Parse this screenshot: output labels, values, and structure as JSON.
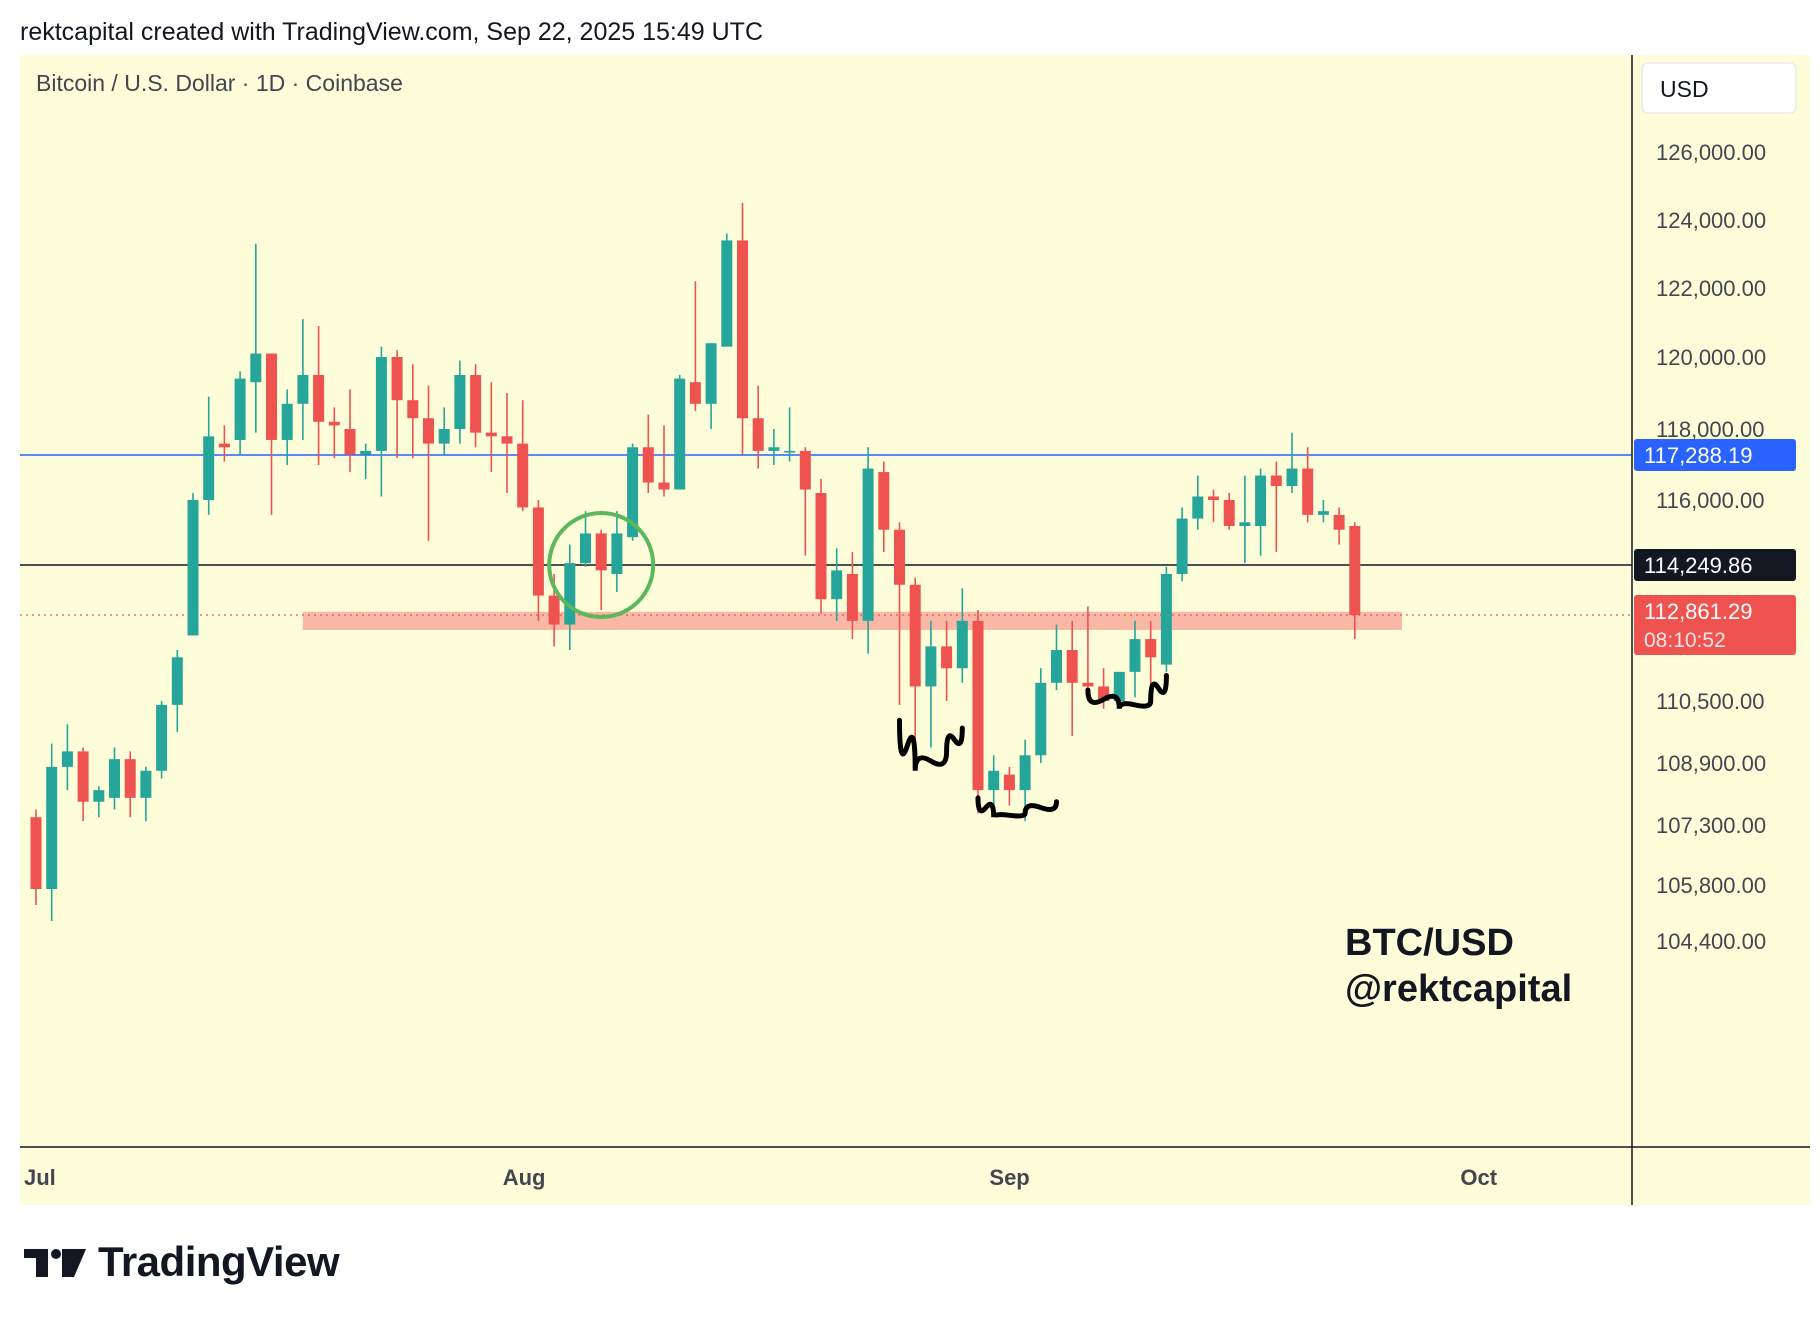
{
  "header": {
    "attribution": "rektcapital created with TradingView.com, Sep 22, 2025 15:49 UTC"
  },
  "chart": {
    "symbol_line": "Bitcoin / U.S. Dollar · 1D · Coinbase",
    "currency_button": "USD",
    "watermark_line1": "BTC/USD",
    "watermark_line2": "@rektcapital",
    "colors": {
      "background": "#fefdd9",
      "up": "#26a69a",
      "down": "#ef5350",
      "blue_line": "#2962ff",
      "black_line": "#131722",
      "zone": "#f7a597",
      "circle": "#5cb85c",
      "axis_text": "#434651"
    }
  },
  "chart_data": {
    "type": "candlestick",
    "y_ticks": [
      {
        "label": "126,000.00",
        "value": 126000
      },
      {
        "label": "124,000.00",
        "value": 124000
      },
      {
        "label": "122,000.00",
        "value": 122000
      },
      {
        "label": "120,000.00",
        "value": 120000
      },
      {
        "label": "118,000.00",
        "value": 118000
      },
      {
        "label": "116,000.00",
        "value": 116000
      },
      {
        "label": "110,500.00",
        "value": 110500
      },
      {
        "label": "108,900.00",
        "value": 108900
      },
      {
        "label": "107,300.00",
        "value": 107300
      },
      {
        "label": "105,800.00",
        "value": 105800
      },
      {
        "label": "104,400.00",
        "value": 104400
      }
    ],
    "x_ticks": [
      "Jul",
      "Aug",
      "Sep",
      "Oct"
    ],
    "price_labels": [
      {
        "value": 117288.19,
        "label": "117,288.19",
        "style": "blue"
      },
      {
        "value": 114249.86,
        "label": "114,249.86",
        "style": "black"
      },
      {
        "value": 112861.29,
        "label": "112,861.29",
        "countdown": "08:10:52",
        "style": "red"
      }
    ],
    "horizontal_lines": [
      {
        "price": 117288.19,
        "style": "blue-solid"
      },
      {
        "price": 114249.86,
        "style": "black-solid"
      },
      {
        "price": 112861.29,
        "style": "red-dotted"
      }
    ],
    "zone": {
      "from_day": 17,
      "to_day": 87,
      "low": 112450,
      "high": 112950
    },
    "candles": [
      {
        "d": 0,
        "o": 107500,
        "h": 107700,
        "l": 105300,
        "c": 105700
      },
      {
        "d": 1,
        "o": 105700,
        "h": 109400,
        "l": 104900,
        "c": 108800
      },
      {
        "d": 2,
        "o": 108800,
        "h": 109900,
        "l": 108200,
        "c": 109200
      },
      {
        "d": 3,
        "o": 109200,
        "h": 109300,
        "l": 107400,
        "c": 107900
      },
      {
        "d": 4,
        "o": 107900,
        "h": 108300,
        "l": 107500,
        "c": 108200
      },
      {
        "d": 5,
        "o": 108000,
        "h": 109300,
        "l": 107700,
        "c": 109000
      },
      {
        "d": 6,
        "o": 109000,
        "h": 109200,
        "l": 107500,
        "c": 108000
      },
      {
        "d": 7,
        "o": 108000,
        "h": 108800,
        "l": 107400,
        "c": 108700
      },
      {
        "d": 8,
        "o": 108700,
        "h": 110500,
        "l": 108500,
        "c": 110400
      },
      {
        "d": 9,
        "o": 110400,
        "h": 111900,
        "l": 109700,
        "c": 111700
      },
      {
        "d": 10,
        "o": 112300,
        "h": 116200,
        "l": 112300,
        "c": 116000
      },
      {
        "d": 11,
        "o": 116000,
        "h": 118900,
        "l": 115600,
        "c": 117800
      },
      {
        "d": 12,
        "o": 117600,
        "h": 118100,
        "l": 117100,
        "c": 117500
      },
      {
        "d": 13,
        "o": 117700,
        "h": 119600,
        "l": 117300,
        "c": 119400
      },
      {
        "d": 14,
        "o": 119300,
        "h": 123300,
        "l": 117900,
        "c": 120100
      },
      {
        "d": 15,
        "o": 120100,
        "h": 120100,
        "l": 115600,
        "c": 117700
      },
      {
        "d": 16,
        "o": 117700,
        "h": 119100,
        "l": 117000,
        "c": 118700
      },
      {
        "d": 17,
        "o": 118700,
        "h": 121100,
        "l": 117700,
        "c": 119500
      },
      {
        "d": 18,
        "o": 119500,
        "h": 120900,
        "l": 117000,
        "c": 118200
      },
      {
        "d": 19,
        "o": 118200,
        "h": 118600,
        "l": 117200,
        "c": 118100
      },
      {
        "d": 20,
        "o": 118000,
        "h": 119100,
        "l": 116800,
        "c": 117300
      },
      {
        "d": 21,
        "o": 117300,
        "h": 117600,
        "l": 116600,
        "c": 117400
      },
      {
        "d": 22,
        "o": 117400,
        "h": 120300,
        "l": 116100,
        "c": 120000
      },
      {
        "d": 23,
        "o": 120000,
        "h": 120200,
        "l": 117200,
        "c": 118800
      },
      {
        "d": 24,
        "o": 118800,
        "h": 119800,
        "l": 117200,
        "c": 118300
      },
      {
        "d": 25,
        "o": 118300,
        "h": 119200,
        "l": 114900,
        "c": 117600
      },
      {
        "d": 26,
        "o": 117600,
        "h": 118600,
        "l": 117300,
        "c": 118000
      },
      {
        "d": 27,
        "o": 118000,
        "h": 119900,
        "l": 117600,
        "c": 119500
      },
      {
        "d": 28,
        "o": 119500,
        "h": 119800,
        "l": 117500,
        "c": 117900
      },
      {
        "d": 29,
        "o": 117900,
        "h": 119300,
        "l": 116800,
        "c": 117800
      },
      {
        "d": 30,
        "o": 117800,
        "h": 119000,
        "l": 116200,
        "c": 117600
      },
      {
        "d": 31,
        "o": 117600,
        "h": 118800,
        "l": 115700,
        "c": 115800
      },
      {
        "d": 32,
        "o": 115800,
        "h": 116000,
        "l": 112700,
        "c": 113400
      },
      {
        "d": 33,
        "o": 113400,
        "h": 114000,
        "l": 112000,
        "c": 112600
      },
      {
        "d": 34,
        "o": 112600,
        "h": 114800,
        "l": 111900,
        "c": 114300
      },
      {
        "d": 35,
        "o": 114300,
        "h": 115700,
        "l": 114200,
        "c": 115100
      },
      {
        "d": 36,
        "o": 115100,
        "h": 115200,
        "l": 113000,
        "c": 114100
      },
      {
        "d": 37,
        "o": 114000,
        "h": 115700,
        "l": 113500,
        "c": 115100
      },
      {
        "d": 38,
        "o": 115000,
        "h": 117600,
        "l": 114900,
        "c": 117500
      },
      {
        "d": 39,
        "o": 117500,
        "h": 118400,
        "l": 116200,
        "c": 116500
      },
      {
        "d": 40,
        "o": 116500,
        "h": 118100,
        "l": 116100,
        "c": 116300
      },
      {
        "d": 41,
        "o": 116300,
        "h": 119500,
        "l": 116300,
        "c": 119400
      },
      {
        "d": 42,
        "o": 119300,
        "h": 122200,
        "l": 118500,
        "c": 118700
      },
      {
        "d": 43,
        "o": 118700,
        "h": 120400,
        "l": 118000,
        "c": 120400
      },
      {
        "d": 44,
        "o": 120300,
        "h": 123600,
        "l": 120300,
        "c": 123400
      },
      {
        "d": 45,
        "o": 123400,
        "h": 124500,
        "l": 117300,
        "c": 118300
      },
      {
        "d": 46,
        "o": 118300,
        "h": 119200,
        "l": 116900,
        "c": 117400
      },
      {
        "d": 47,
        "o": 117400,
        "h": 118000,
        "l": 117000,
        "c": 117500
      },
      {
        "d": 48,
        "o": 117400,
        "h": 118600,
        "l": 117100,
        "c": 117400
      },
      {
        "d": 49,
        "o": 117400,
        "h": 117500,
        "l": 114500,
        "c": 116300
      },
      {
        "d": 50,
        "o": 116200,
        "h": 116600,
        "l": 112900,
        "c": 113300
      },
      {
        "d": 51,
        "o": 113300,
        "h": 114700,
        "l": 112700,
        "c": 114100
      },
      {
        "d": 52,
        "o": 114000,
        "h": 114600,
        "l": 112200,
        "c": 112700
      },
      {
        "d": 53,
        "o": 112700,
        "h": 117500,
        "l": 111800,
        "c": 116900
      },
      {
        "d": 54,
        "o": 116800,
        "h": 117100,
        "l": 114600,
        "c": 115200
      },
      {
        "d": 55,
        "o": 115200,
        "h": 115400,
        "l": 110400,
        "c": 113700
      },
      {
        "d": 56,
        "o": 113700,
        "h": 113900,
        "l": 109000,
        "c": 110900
      },
      {
        "d": 57,
        "o": 110900,
        "h": 112700,
        "l": 109300,
        "c": 112000
      },
      {
        "d": 58,
        "o": 112000,
        "h": 112700,
        "l": 110500,
        "c": 111400
      },
      {
        "d": 59,
        "o": 111400,
        "h": 113600,
        "l": 111000,
        "c": 112700
      },
      {
        "d": 60,
        "o": 112700,
        "h": 113000,
        "l": 107600,
        "c": 108200
      },
      {
        "d": 61,
        "o": 108200,
        "h": 109100,
        "l": 107500,
        "c": 108700
      },
      {
        "d": 62,
        "o": 108600,
        "h": 108800,
        "l": 107800,
        "c": 108200
      },
      {
        "d": 63,
        "o": 108200,
        "h": 109500,
        "l": 107400,
        "c": 109100
      },
      {
        "d": 64,
        "o": 109100,
        "h": 111400,
        "l": 108900,
        "c": 111000
      },
      {
        "d": 65,
        "o": 111000,
        "h": 112600,
        "l": 110800,
        "c": 111900
      },
      {
        "d": 66,
        "o": 111900,
        "h": 112700,
        "l": 109600,
        "c": 111000
      },
      {
        "d": 67,
        "o": 111000,
        "h": 113100,
        "l": 110500,
        "c": 110900
      },
      {
        "d": 68,
        "o": 110900,
        "h": 111400,
        "l": 110300,
        "c": 110500
      },
      {
        "d": 69,
        "o": 110500,
        "h": 111200,
        "l": 110300,
        "c": 111300
      },
      {
        "d": 70,
        "o": 111300,
        "h": 112700,
        "l": 110600,
        "c": 112200
      },
      {
        "d": 71,
        "o": 112200,
        "h": 112700,
        "l": 110900,
        "c": 111700
      },
      {
        "d": 72,
        "o": 111500,
        "h": 114200,
        "l": 111300,
        "c": 114000
      },
      {
        "d": 73,
        "o": 114000,
        "h": 115800,
        "l": 113800,
        "c": 115500
      },
      {
        "d": 74,
        "o": 115500,
        "h": 116700,
        "l": 115200,
        "c": 116100
      },
      {
        "d": 75,
        "o": 116100,
        "h": 116300,
        "l": 115400,
        "c": 116000
      },
      {
        "d": 76,
        "o": 116000,
        "h": 116200,
        "l": 115200,
        "c": 115300
      },
      {
        "d": 77,
        "o": 115300,
        "h": 116700,
        "l": 114300,
        "c": 115400
      },
      {
        "d": 78,
        "o": 115300,
        "h": 116900,
        "l": 114500,
        "c": 116700
      },
      {
        "d": 79,
        "o": 116700,
        "h": 117100,
        "l": 114600,
        "c": 116400
      },
      {
        "d": 80,
        "o": 116400,
        "h": 117900,
        "l": 116200,
        "c": 116900
      },
      {
        "d": 81,
        "o": 116900,
        "h": 117500,
        "l": 115400,
        "c": 115600
      },
      {
        "d": 82,
        "o": 115600,
        "h": 116000,
        "l": 115400,
        "c": 115700
      },
      {
        "d": 83,
        "o": 115600,
        "h": 115800,
        "l": 114800,
        "c": 115200
      },
      {
        "d": 84,
        "o": 115300,
        "h": 115400,
        "l": 112200,
        "c": 112861
      }
    ]
  },
  "annotations": [
    {
      "type": "circle",
      "day": 36,
      "price": 114250
    },
    {
      "type": "arc",
      "points": [
        [
          55,
          110000
        ],
        [
          56,
          108700
        ],
        [
          58,
          109200
        ],
        [
          59,
          109800
        ]
      ]
    },
    {
      "type": "arc",
      "points": [
        [
          60,
          108000
        ],
        [
          61,
          107500
        ],
        [
          63,
          107600
        ],
        [
          65,
          107900
        ]
      ]
    },
    {
      "type": "arc",
      "points": [
        [
          67,
          110800
        ],
        [
          69,
          110300
        ],
        [
          71,
          110500
        ],
        [
          72,
          111200
        ]
      ]
    }
  ],
  "footer": {
    "brand": "TradingView"
  }
}
